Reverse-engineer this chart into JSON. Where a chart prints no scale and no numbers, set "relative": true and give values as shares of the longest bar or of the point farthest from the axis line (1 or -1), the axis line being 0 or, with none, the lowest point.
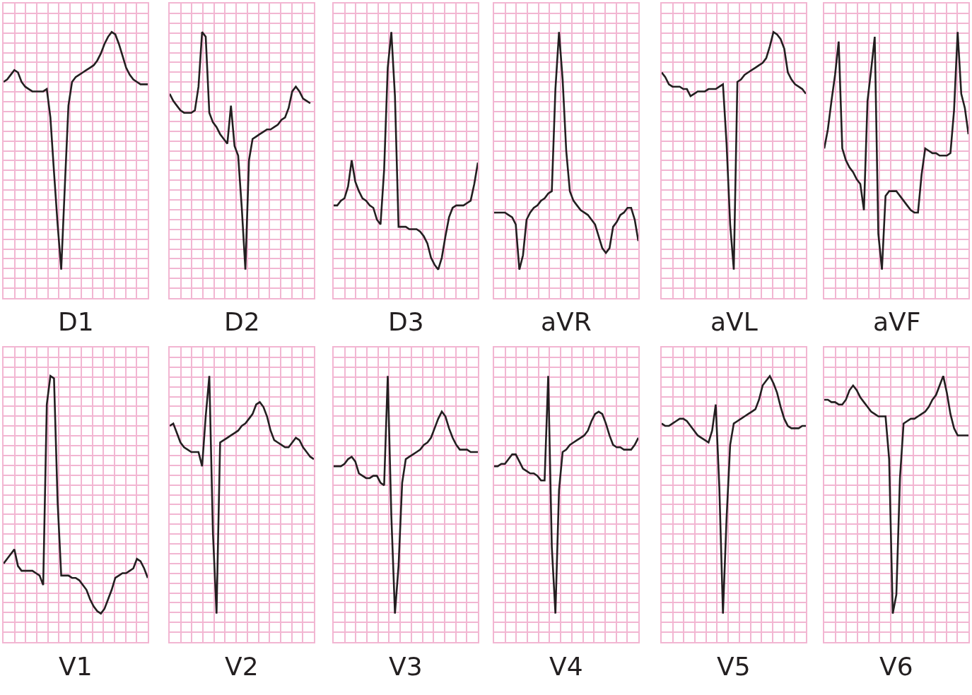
{
  "chart_data": [
    {
      "type": "line",
      "title": "D1",
      "relative": true,
      "grid": true,
      "tick_labels": false,
      "color": "#231f20",
      "categories": [
        null,
        null,
        null,
        null,
        null,
        null,
        null,
        null,
        null,
        null,
        null,
        null,
        null,
        null,
        null,
        null,
        null,
        null,
        null,
        null,
        null,
        null,
        null,
        null,
        null,
        null,
        null,
        null,
        null,
        null,
        null,
        null,
        null,
        null,
        null,
        null,
        null,
        null,
        null,
        null,
        null
      ],
      "values": [
        0.79,
        0.8,
        0.82,
        0.84,
        0.83,
        0.79,
        0.77,
        0.76,
        0.75,
        0.75,
        0.75,
        0.75,
        0.76,
        0.64,
        0.41,
        0.19,
        0.0,
        0.35,
        0.69,
        0.79,
        0.81,
        0.82,
        0.83,
        0.84,
        0.85,
        0.86,
        0.88,
        0.91,
        0.95,
        0.98,
        1.0,
        0.99,
        0.95,
        0.9,
        0.85,
        0.82,
        0.8,
        0.79,
        0.78,
        0.78,
        0.78
      ]
    },
    {
      "type": "line",
      "title": "D2",
      "relative": true,
      "grid": true,
      "tick_labels": false,
      "color": "#231f20",
      "categories": [
        null,
        null,
        null,
        null,
        null,
        null,
        null,
        null,
        null,
        null,
        null,
        null,
        null,
        null,
        null,
        null,
        null,
        null,
        null,
        null,
        null,
        null,
        null,
        null,
        null,
        null,
        null,
        null,
        null,
        null,
        null,
        null,
        null,
        null,
        null,
        null,
        null,
        null,
        null,
        null,
        null
      ],
      "values": [
        0.74,
        0.71,
        0.69,
        0.67,
        0.66,
        0.66,
        0.66,
        0.67,
        0.77,
        1.0,
        0.98,
        0.66,
        0.62,
        0.6,
        0.57,
        0.55,
        0.53,
        0.69,
        0.52,
        0.48,
        0.26,
        0.0,
        0.46,
        0.55,
        0.56,
        0.57,
        0.58,
        0.59,
        0.59,
        0.6,
        0.61,
        0.63,
        0.64,
        0.68,
        0.75,
        0.77,
        0.75,
        0.72,
        0.71,
        0.7,
        null
      ]
    },
    {
      "type": "line",
      "title": "D3",
      "relative": true,
      "grid": true,
      "tick_labels": false,
      "color": "#231f20",
      "categories": [
        null,
        null,
        null,
        null,
        null,
        null,
        null,
        null,
        null,
        null,
        null,
        null,
        null,
        null,
        null,
        null,
        null,
        null,
        null,
        null,
        null,
        null,
        null,
        null,
        null,
        null,
        null,
        null,
        null,
        null,
        null,
        null,
        null,
        null,
        null,
        null,
        null,
        null,
        null,
        null,
        null
      ],
      "values": [
        0.27,
        0.27,
        0.29,
        0.3,
        0.35,
        0.46,
        0.37,
        0.33,
        0.3,
        0.29,
        0.27,
        0.26,
        0.21,
        0.19,
        0.42,
        0.85,
        1.0,
        0.73,
        0.18,
        0.18,
        0.18,
        0.17,
        0.17,
        0.17,
        0.16,
        0.14,
        0.11,
        0.05,
        0.02,
        0.0,
        0.05,
        0.14,
        0.22,
        0.26,
        0.27,
        0.27,
        0.27,
        0.28,
        0.29,
        0.36,
        0.45
      ]
    },
    {
      "type": "line",
      "title": "aVR",
      "relative": true,
      "grid": true,
      "tick_labels": false,
      "color": "#231f20",
      "categories": [
        null,
        null,
        null,
        null,
        null,
        null,
        null,
        null,
        null,
        null,
        null,
        null,
        null,
        null,
        null,
        null,
        null,
        null,
        null,
        null,
        null,
        null,
        null,
        null,
        null,
        null,
        null,
        null,
        null,
        null,
        null,
        null,
        null,
        null,
        null,
        null,
        null,
        null,
        null,
        null,
        null
      ],
      "values": [
        0.24,
        0.24,
        0.24,
        0.24,
        0.23,
        0.22,
        0.19,
        0.0,
        0.06,
        0.21,
        0.24,
        0.26,
        0.27,
        0.29,
        0.3,
        0.32,
        0.33,
        0.76,
        1.0,
        0.8,
        0.5,
        0.33,
        0.29,
        0.27,
        0.25,
        0.24,
        0.23,
        0.21,
        0.19,
        0.14,
        0.09,
        0.07,
        0.09,
        0.18,
        0.2,
        0.23,
        0.24,
        0.26,
        0.26,
        0.21,
        0.12
      ]
    },
    {
      "type": "line",
      "title": "aVL",
      "relative": true,
      "grid": true,
      "tick_labels": false,
      "color": "#231f20",
      "categories": [
        null,
        null,
        null,
        null,
        null,
        null,
        null,
        null,
        null,
        null,
        null,
        null,
        null,
        null,
        null,
        null,
        null,
        null,
        null,
        null,
        null,
        null,
        null,
        null,
        null,
        null,
        null,
        null,
        null,
        null,
        null,
        null,
        null,
        null,
        null,
        null,
        null,
        null,
        null,
        null,
        null
      ],
      "values": [
        0.83,
        0.81,
        0.78,
        0.77,
        0.77,
        0.77,
        0.76,
        0.76,
        0.73,
        0.74,
        0.75,
        0.75,
        0.75,
        0.76,
        0.76,
        0.76,
        0.77,
        0.78,
        0.53,
        0.19,
        0.0,
        0.79,
        0.8,
        0.82,
        0.83,
        0.84,
        0.85,
        0.86,
        0.87,
        0.89,
        0.94,
        1.0,
        0.99,
        0.97,
        0.93,
        0.83,
        0.8,
        0.78,
        0.77,
        0.76,
        0.74
      ]
    },
    {
      "type": "line",
      "title": "aVF",
      "relative": true,
      "grid": true,
      "tick_labels": false,
      "color": "#231f20",
      "categories": [
        null,
        null,
        null,
        null,
        null,
        null,
        null,
        null,
        null,
        null,
        null,
        null,
        null,
        null,
        null,
        null,
        null,
        null,
        null,
        null,
        null,
        null,
        null,
        null,
        null,
        null,
        null,
        null,
        null,
        null,
        null,
        null,
        null,
        null,
        null,
        null,
        null,
        null,
        null,
        null,
        null
      ],
      "values": [
        0.51,
        0.59,
        0.71,
        0.82,
        0.96,
        0.51,
        0.46,
        0.43,
        0.41,
        0.38,
        0.36,
        0.25,
        0.71,
        0.84,
        0.98,
        0.15,
        0.0,
        0.31,
        0.33,
        0.33,
        0.33,
        0.31,
        0.29,
        0.27,
        0.25,
        0.24,
        0.24,
        0.4,
        0.51,
        0.5,
        0.49,
        0.49,
        0.48,
        0.48,
        0.48,
        0.49,
        0.67,
        1.0,
        0.74,
        0.68,
        0.57
      ]
    },
    {
      "type": "line",
      "title": "V1",
      "relative": true,
      "grid": true,
      "tick_labels": false,
      "color": "#231f20",
      "categories": [
        null,
        null,
        null,
        null,
        null,
        null,
        null,
        null,
        null,
        null,
        null,
        null,
        null,
        null,
        null,
        null,
        null,
        null,
        null,
        null,
        null,
        null,
        null,
        null,
        null,
        null,
        null,
        null,
        null,
        null,
        null,
        null,
        null,
        null,
        null,
        null,
        null,
        null,
        null,
        null,
        null
      ],
      "values": [
        0.21,
        0.23,
        0.25,
        0.27,
        0.2,
        0.18,
        0.18,
        0.18,
        0.18,
        0.17,
        0.16,
        0.12,
        0.88,
        1.0,
        0.99,
        0.47,
        0.16,
        0.16,
        0.16,
        0.15,
        0.15,
        0.14,
        0.12,
        0.1,
        0.06,
        0.03,
        0.01,
        0.0,
        0.02,
        0.06,
        0.1,
        0.15,
        0.16,
        0.17,
        0.17,
        0.18,
        0.19,
        0.23,
        0.22,
        0.19,
        0.15
      ]
    },
    {
      "type": "line",
      "title": "V2",
      "relative": true,
      "grid": true,
      "tick_labels": false,
      "color": "#231f20",
      "categories": [
        null,
        null,
        null,
        null,
        null,
        null,
        null,
        null,
        null,
        null,
        null,
        null,
        null,
        null,
        null,
        null,
        null,
        null,
        null,
        null,
        null,
        null,
        null,
        null,
        null,
        null,
        null,
        null,
        null,
        null,
        null,
        null,
        null,
        null,
        null,
        null,
        null,
        null,
        null,
        null,
        null
      ],
      "values": [
        0.79,
        0.8,
        0.76,
        0.72,
        0.7,
        0.69,
        0.68,
        0.68,
        0.68,
        0.62,
        0.83,
        1.0,
        0.34,
        0.0,
        0.72,
        0.73,
        0.74,
        0.75,
        0.76,
        0.77,
        0.79,
        0.8,
        0.82,
        0.84,
        0.88,
        0.89,
        0.87,
        0.83,
        0.77,
        0.73,
        0.72,
        0.71,
        0.7,
        0.7,
        0.72,
        0.74,
        0.73,
        0.7,
        0.68,
        0.66,
        0.65
      ]
    },
    {
      "type": "line",
      "title": "V3",
      "relative": true,
      "grid": true,
      "tick_labels": false,
      "color": "#231f20",
      "categories": [
        null,
        null,
        null,
        null,
        null,
        null,
        null,
        null,
        null,
        null,
        null,
        null,
        null,
        null,
        null,
        null,
        null,
        null,
        null,
        null,
        null,
        null,
        null,
        null,
        null,
        null,
        null,
        null,
        null,
        null,
        null,
        null,
        null,
        null,
        null,
        null,
        null,
        null,
        null,
        null,
        null
      ],
      "values": [
        0.62,
        0.62,
        0.62,
        0.63,
        0.65,
        0.66,
        0.64,
        0.59,
        0.58,
        0.57,
        0.57,
        0.58,
        0.58,
        0.55,
        0.54,
        1.0,
        0.41,
        0.0,
        0.2,
        0.55,
        0.65,
        0.66,
        0.67,
        0.68,
        0.69,
        0.71,
        0.72,
        0.74,
        0.78,
        0.82,
        0.85,
        0.83,
        0.78,
        0.74,
        0.71,
        0.69,
        0.69,
        0.69,
        0.68,
        0.68,
        0.68
      ]
    },
    {
      "type": "line",
      "title": "V4",
      "relative": true,
      "grid": true,
      "tick_labels": false,
      "color": "#231f20",
      "categories": [
        null,
        null,
        null,
        null,
        null,
        null,
        null,
        null,
        null,
        null,
        null,
        null,
        null,
        null,
        null,
        null,
        null,
        null,
        null,
        null,
        null,
        null,
        null,
        null,
        null,
        null,
        null,
        null,
        null,
        null,
        null,
        null,
        null,
        null,
        null,
        null,
        null,
        null,
        null,
        null,
        null
      ],
      "values": [
        0.62,
        0.62,
        0.63,
        0.63,
        0.65,
        0.67,
        0.67,
        0.64,
        0.61,
        0.6,
        0.59,
        0.59,
        0.58,
        0.56,
        0.56,
        1.0,
        0.28,
        0.0,
        0.52,
        0.68,
        0.69,
        0.71,
        0.72,
        0.73,
        0.74,
        0.75,
        0.77,
        0.81,
        0.84,
        0.85,
        0.84,
        0.8,
        0.75,
        0.71,
        0.7,
        0.7,
        0.69,
        0.69,
        0.69,
        0.71,
        0.74
      ]
    },
    {
      "type": "line",
      "title": "V5",
      "relative": true,
      "grid": true,
      "tick_labels": false,
      "color": "#231f20",
      "categories": [
        null,
        null,
        null,
        null,
        null,
        null,
        null,
        null,
        null,
        null,
        null,
        null,
        null,
        null,
        null,
        null,
        null,
        null,
        null,
        null,
        null,
        null,
        null,
        null,
        null,
        null,
        null,
        null,
        null,
        null,
        null,
        null,
        null,
        null,
        null,
        null,
        null,
        null,
        null,
        null,
        null
      ],
      "values": [
        0.8,
        0.79,
        0.79,
        0.8,
        0.81,
        0.82,
        0.82,
        0.81,
        0.79,
        0.77,
        0.75,
        0.74,
        0.73,
        0.72,
        0.77,
        0.88,
        0.53,
        0.0,
        0.4,
        0.71,
        0.8,
        0.81,
        0.82,
        0.83,
        0.84,
        0.85,
        0.86,
        0.9,
        0.96,
        0.98,
        1.0,
        0.97,
        0.93,
        0.87,
        0.82,
        0.79,
        0.78,
        0.78,
        0.78,
        0.79,
        0.79
      ]
    },
    {
      "type": "line",
      "title": "V6",
      "relative": true,
      "grid": true,
      "tick_labels": false,
      "color": "#231f20",
      "categories": [
        null,
        null,
        null,
        null,
        null,
        null,
        null,
        null,
        null,
        null,
        null,
        null,
        null,
        null,
        null,
        null,
        null,
        null,
        null,
        null,
        null,
        null,
        null,
        null,
        null,
        null,
        null,
        null,
        null,
        null,
        null,
        null,
        null,
        null,
        null,
        null,
        null,
        null,
        null,
        null,
        null
      ],
      "values": [
        0.9,
        0.9,
        0.89,
        0.89,
        0.88,
        0.88,
        0.9,
        0.94,
        0.96,
        0.94,
        0.91,
        0.89,
        0.87,
        0.85,
        0.84,
        0.83,
        0.83,
        0.83,
        0.65,
        0.0,
        0.08,
        0.57,
        0.8,
        0.81,
        0.82,
        0.82,
        0.83,
        0.84,
        0.85,
        0.87,
        0.9,
        0.92,
        0.96,
        1.0,
        0.93,
        0.84,
        0.78,
        0.75,
        0.75,
        0.75,
        0.75
      ]
    }
  ]
}
